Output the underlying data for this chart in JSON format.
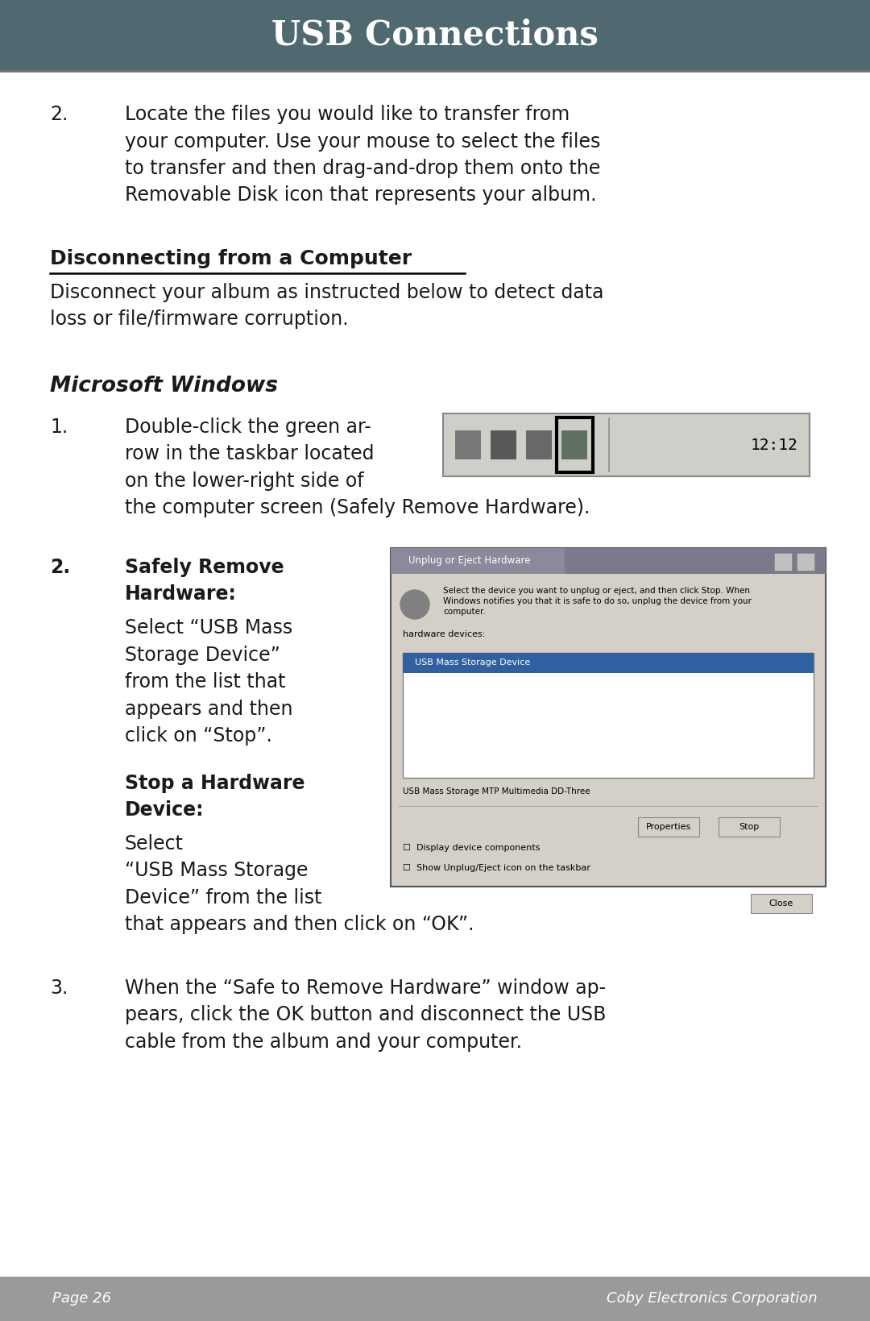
{
  "title": "USB Connections",
  "header_bg": "#506870",
  "header_text_color": "#FFFFFF",
  "body_bg": "#FFFFFF",
  "body_text_color": "#1a1a1a",
  "footer_bg": "#9a9a9a",
  "footer_text_color": "#FFFFFF",
  "footer_left": "Page 26",
  "footer_right": "Coby Electronics Corporation",
  "para1_num": "2.",
  "para1_line1": "Locate the files you would like to transfer from",
  "para1_line2": "your computer. Use your mouse to select the files",
  "para1_line3": "to transfer and then drag-and-drop them onto the",
  "para1_line4": "Removable Disk icon that represents your album.",
  "section_heading": "Disconnecting from a Computer",
  "section_intro_line1": "Disconnect your album as instructed below to detect data",
  "section_intro_line2": "loss or file/firmware corruption.",
  "subsection_heading": "Microsoft Windows",
  "step1_num": "1.",
  "step1_line1": "Double-click the green ar-",
  "step1_line2": "row in the taskbar located",
  "step1_line3": "on the lower-right side of",
  "step1_line4": "the computer screen (Safely Remove Hardware).",
  "step2_num": "2.",
  "step2_bold1": "Safely Remove",
  "step2_bold2": "Hardware:",
  "step2_t1": "Select “USB Mass",
  "step2_t2": "Storage Device”",
  "step2_t3": "from the list that",
  "step2_t4": "appears and then",
  "step2_t5": "click on “Stop”.",
  "step2b_bold1": "Stop a Hardware",
  "step2b_bold2": "Device:",
  "step2b_t1": "Select",
  "step2b_t2": "“USB Mass Storage",
  "step2b_t3": "Device” from the list",
  "step2b_t4": "that appears and then click on “OK”.",
  "step3_num": "3.",
  "step3_line1": "When the “Safe to Remove Hardware” window ap-",
  "step3_line2": "pears, click the OK button and disconnect the USB",
  "step3_line3": "cable from the album and your computer."
}
